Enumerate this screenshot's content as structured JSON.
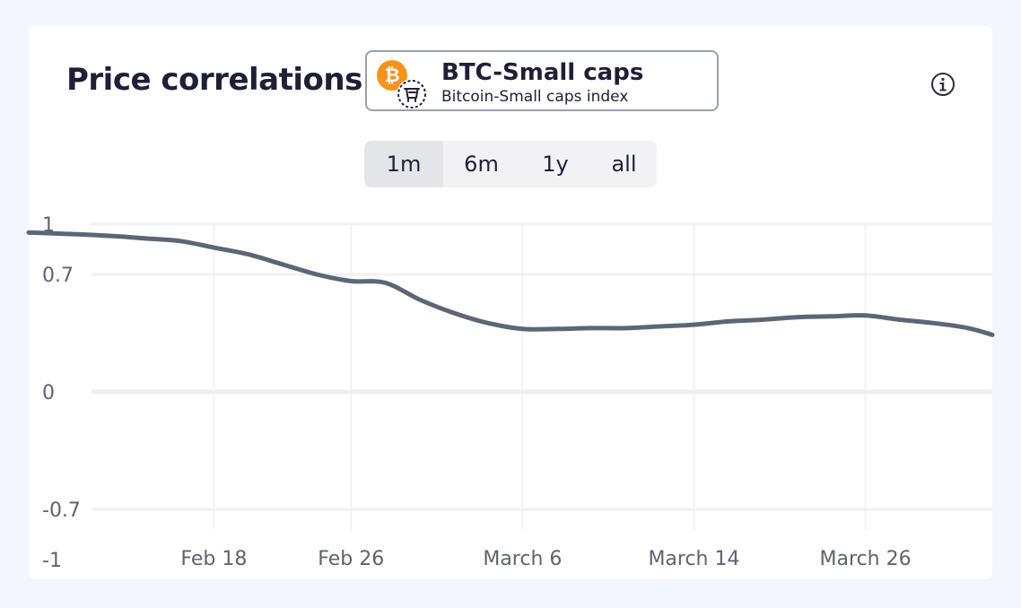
{
  "widget": {
    "title": "Price correlations",
    "pair": {
      "name": "BTC-Small caps",
      "description": "Bitcoin-Small caps index",
      "icon": "bitcoin-icon",
      "secondary_icon": "basket-icon"
    },
    "info_icon": "info-icon",
    "ranges": [
      {
        "label": "1m",
        "active": true
      },
      {
        "label": "6m",
        "active": false
      },
      {
        "label": "1y",
        "active": false
      },
      {
        "label": "all",
        "active": false
      }
    ]
  },
  "chart_data": {
    "type": "line",
    "title": "",
    "xlabel": "",
    "ylabel": "",
    "ylim": [
      -1,
      1
    ],
    "y_ticks": [
      1,
      0.7,
      0,
      -0.7,
      -1
    ],
    "y_tick_labels": [
      "1",
      "0.7",
      "0",
      "-0.7",
      "-1"
    ],
    "x_ticks": [
      {
        "label": "Feb 18",
        "day": 18
      },
      {
        "label": "Feb 26",
        "day": 26
      },
      {
        "label": "March 6",
        "day": 36
      },
      {
        "label": "March 14",
        "day": 46
      },
      {
        "label": "March 26",
        "day": 56
      }
    ],
    "x_domain": [
      7.2,
      63.4
    ],
    "line_color": "#5b6676",
    "grid": true,
    "series": [
      {
        "name": "BTC-Small caps correlation",
        "x": [
          7.2,
          10,
          12,
          14,
          16,
          18,
          20,
          22,
          24,
          26,
          28,
          30,
          32,
          34,
          36,
          38,
          40,
          42,
          44,
          46,
          48,
          50,
          52,
          54,
          56,
          58,
          60,
          62,
          63.4
        ],
        "values": [
          0.95,
          0.94,
          0.93,
          0.915,
          0.9,
          0.86,
          0.82,
          0.76,
          0.7,
          0.66,
          0.65,
          0.55,
          0.47,
          0.41,
          0.375,
          0.375,
          0.38,
          0.38,
          0.39,
          0.4,
          0.42,
          0.43,
          0.445,
          0.45,
          0.455,
          0.43,
          0.41,
          0.38,
          0.34
        ]
      }
    ]
  }
}
